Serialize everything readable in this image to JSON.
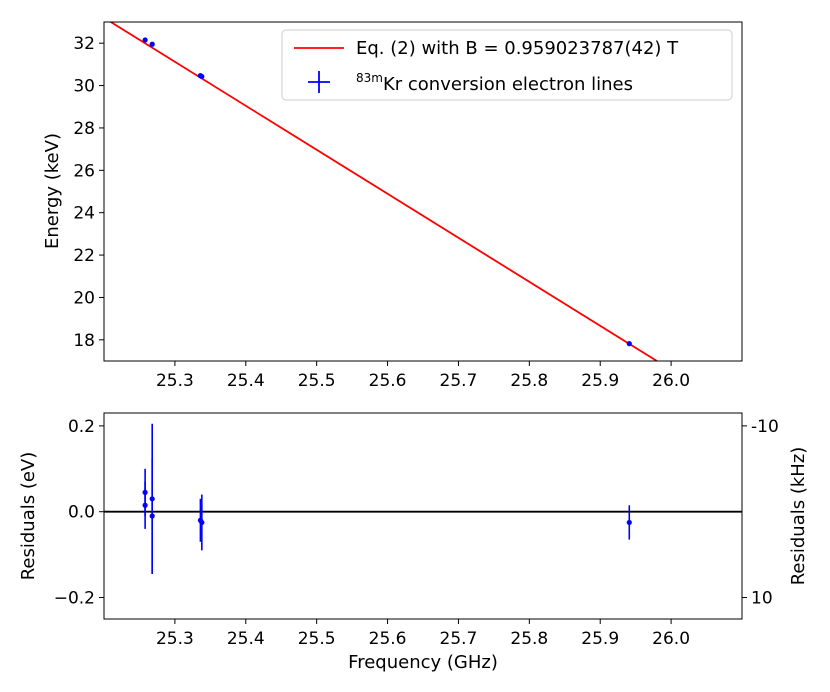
{
  "chart_data": [
    {
      "type": "line",
      "subplot": "top",
      "xlabel": "",
      "ylabel": "Energy (keV)",
      "xlim": [
        25.2,
        26.1
      ],
      "ylim": [
        17.0,
        33.0
      ],
      "xticks": [
        "25.3",
        "25.4",
        "25.5",
        "25.6",
        "25.7",
        "25.8",
        "25.9",
        "26.0"
      ],
      "xtick_values": [
        25.3,
        25.4,
        25.5,
        25.6,
        25.7,
        25.8,
        25.9,
        26.0
      ],
      "yticks": [
        "18",
        "20",
        "22",
        "24",
        "26",
        "28",
        "30",
        "32"
      ],
      "ytick_values": [
        18,
        20,
        22,
        24,
        26,
        28,
        30,
        32
      ],
      "legend_position": "top-right",
      "series": [
        {
          "name": "Eq. (2) with B = 0.959023787(42) T",
          "kind": "line",
          "color": "#ff0000",
          "x": [
            25.2,
            25.98
          ],
          "y": [
            33.2,
            17.0
          ]
        },
        {
          "name_prefix": "83m",
          "name": "Kr conversion electron lines",
          "kind": "scatter-errorbar",
          "color": "#0000ff",
          "x": [
            25.258,
            25.268,
            25.336,
            25.338,
            25.941
          ],
          "y": [
            32.15,
            31.95,
            30.47,
            30.43,
            17.82
          ]
        }
      ]
    },
    {
      "type": "scatter",
      "subplot": "bottom",
      "xlabel": "Frequency (GHz)",
      "ylabel": "Residuals (eV)",
      "ylabel_right": "Residuals (kHz)",
      "xlim": [
        25.2,
        26.1
      ],
      "ylim": [
        -0.25,
        0.23
      ],
      "xticks": [
        "25.3",
        "25.4",
        "25.5",
        "25.6",
        "25.7",
        "25.8",
        "25.9",
        "26.0"
      ],
      "xtick_values": [
        25.3,
        25.4,
        25.5,
        25.6,
        25.7,
        25.8,
        25.9,
        26.0
      ],
      "yticks": [
        "−0.2",
        "0.0",
        "0.2"
      ],
      "ytick_values": [
        -0.2,
        0.0,
        0.2
      ],
      "yticks_right": [
        "-10",
        "10"
      ],
      "ytick_right_values": [
        0.2,
        -0.2
      ],
      "zero_line": true,
      "points": [
        {
          "x": 25.258,
          "y": 0.045,
          "err": 0.055
        },
        {
          "x": 25.258,
          "y": 0.015,
          "err": 0.055
        },
        {
          "x": 25.268,
          "y": 0.03,
          "err": 0.175
        },
        {
          "x": 25.268,
          "y": -0.01,
          "err": 0.135
        },
        {
          "x": 25.336,
          "y": -0.02,
          "err": 0.05
        },
        {
          "x": 25.338,
          "y": -0.025,
          "err": 0.065
        },
        {
          "x": 25.941,
          "y": -0.025,
          "err": 0.04
        }
      ],
      "color": "#0000ff"
    }
  ]
}
